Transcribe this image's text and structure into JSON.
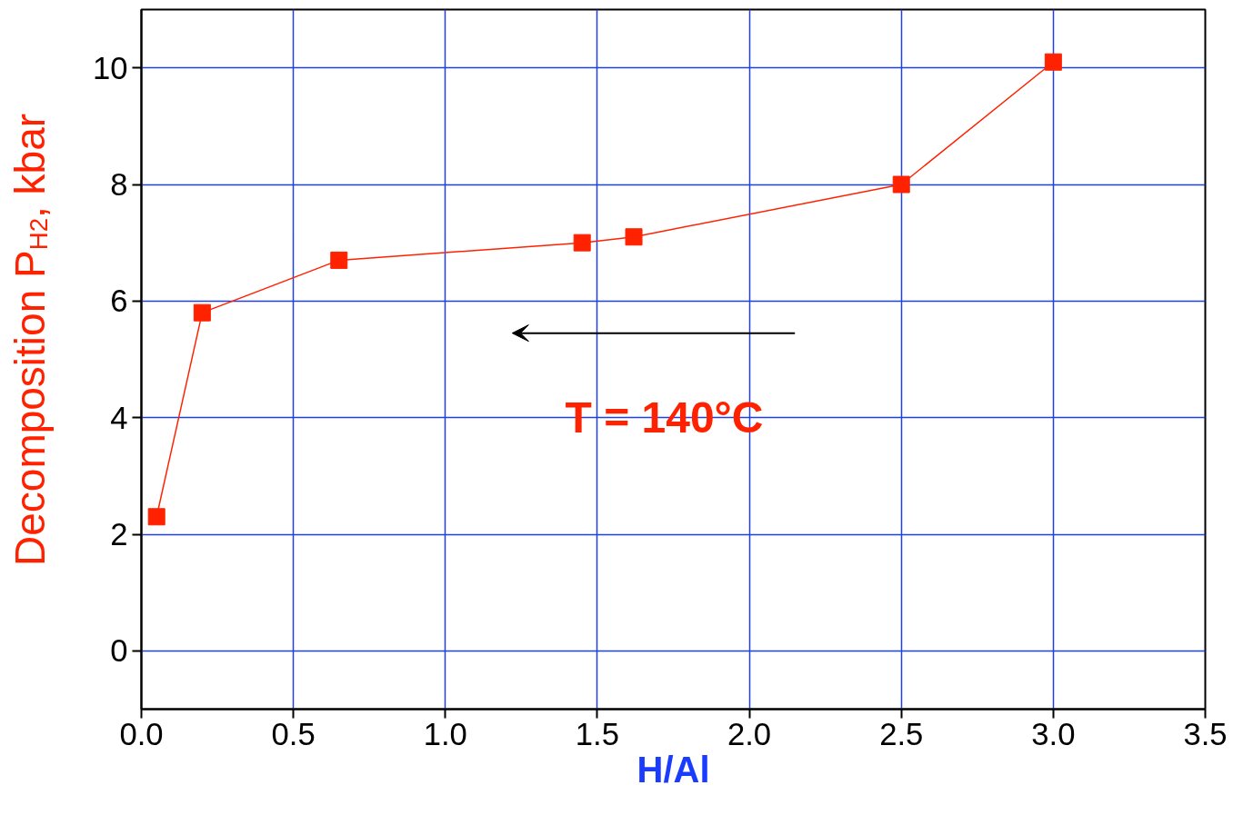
{
  "chart_data": {
    "type": "line",
    "xlabel": "H/Al",
    "ylabel": "Decomposition P$_{H2}$, kbar",
    "x": [
      0.05,
      0.2,
      0.65,
      1.45,
      1.62,
      2.5,
      3.0
    ],
    "series": [
      {
        "color": "#ff2200",
        "values": [
          2.3,
          5.8,
          6.7,
          7.0,
          7.1,
          8.0,
          10.1
        ]
      }
    ],
    "xlim": [
      0,
      3.5
    ],
    "xticks": [
      {
        "value": 0,
        "label": "0.0"
      },
      0.5,
      {
        "value": 1,
        "label": "1.0"
      },
      1.5,
      {
        "value": 2,
        "label": "2.0"
      },
      2.5,
      {
        "value": 3,
        "label": "3.0"
      },
      3.5
    ],
    "ylim": [
      -1,
      11
    ],
    "yticks": [
      0,
      2,
      4,
      6,
      8,
      10
    ],
    "grid": true,
    "marker": "square",
    "line_style": "solid",
    "annotations": [
      "T = 140°C"
    ]
  }
}
